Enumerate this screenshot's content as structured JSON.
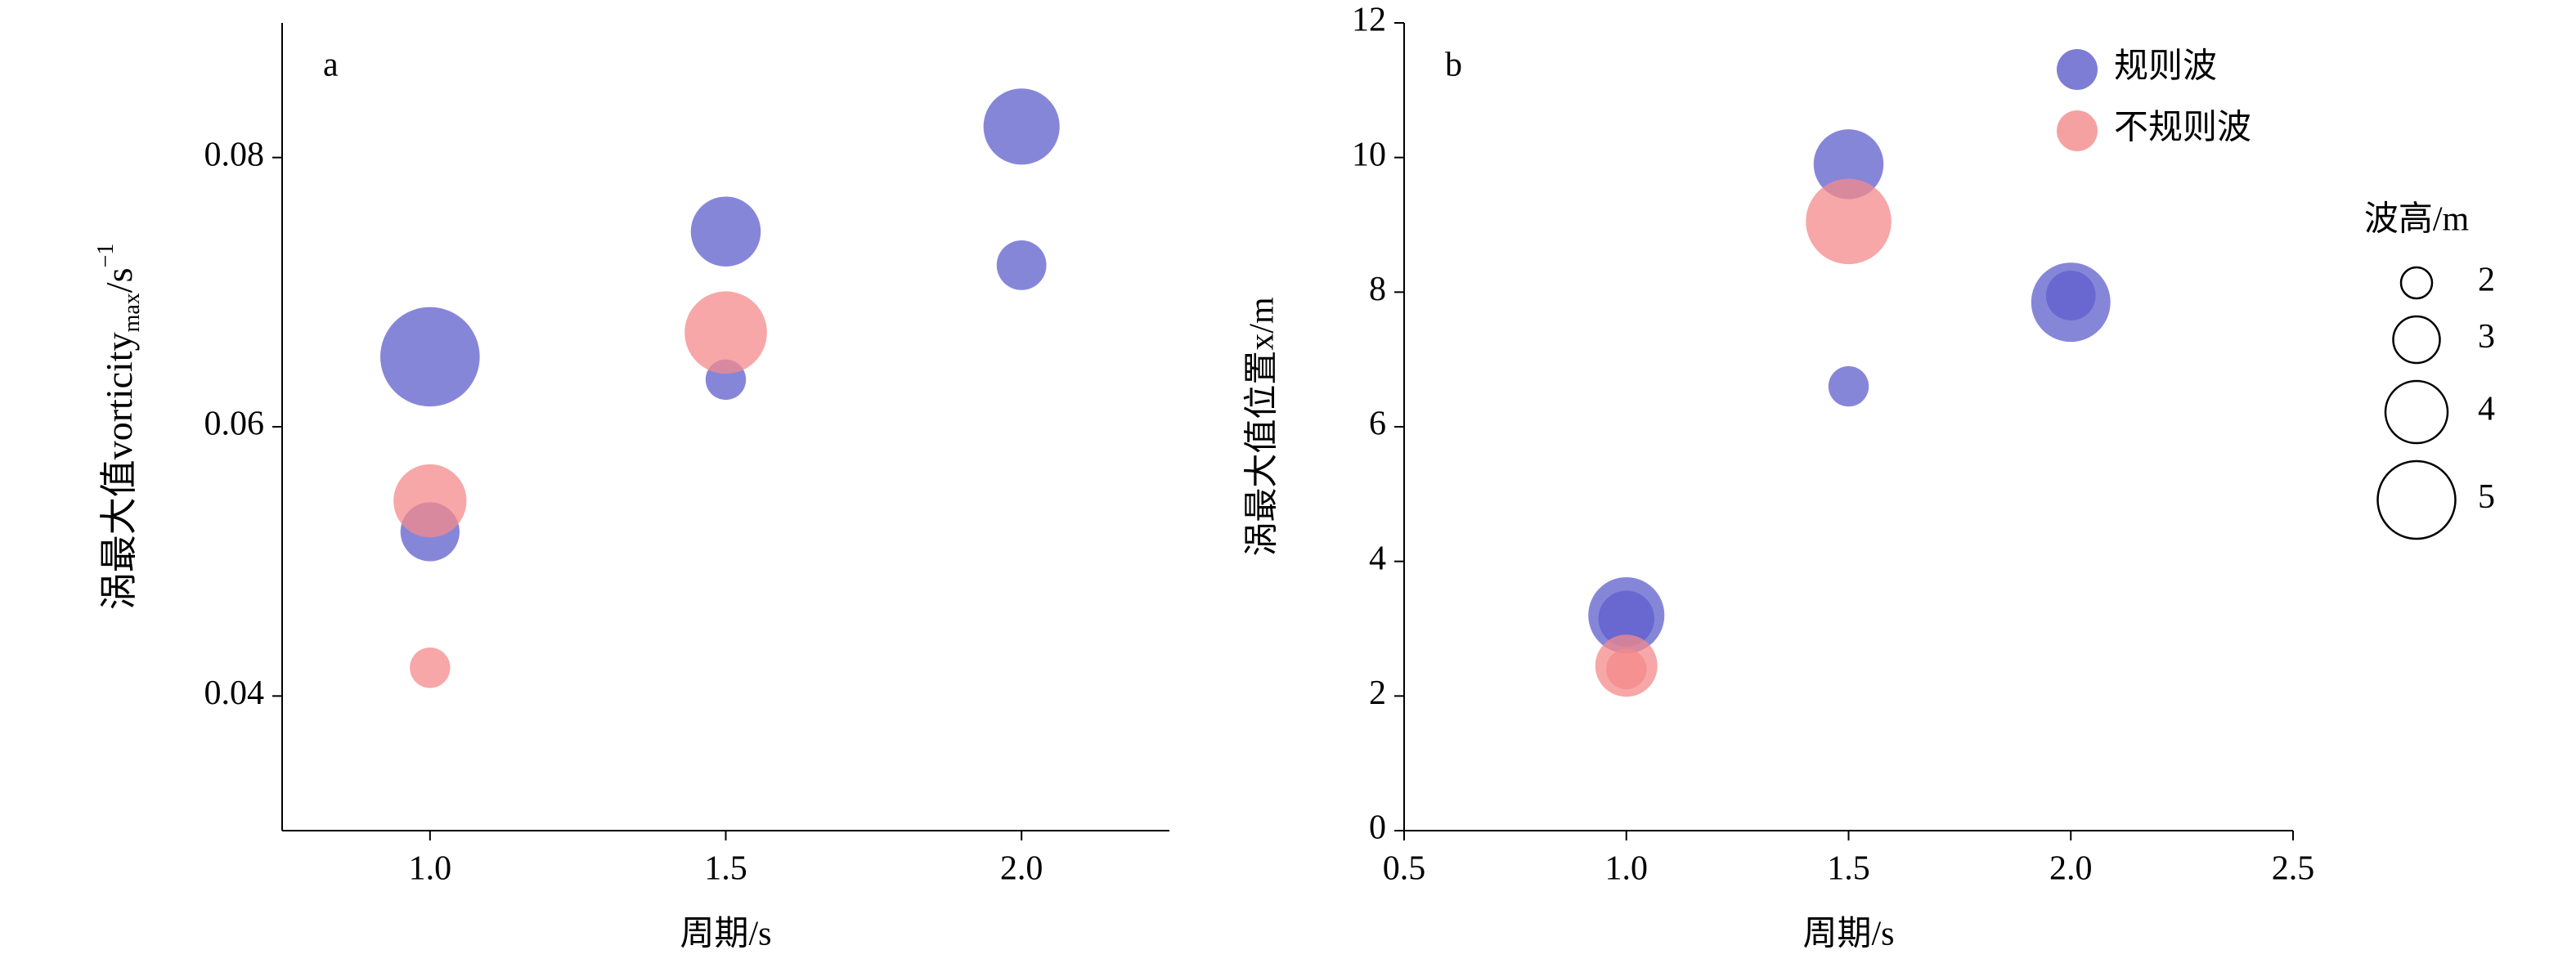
{
  "chart_data": [
    {
      "type": "scatter",
      "panel_label": "a",
      "xlabel": "周期/s",
      "ylabel": [
        "涡最大值vorticity",
        "max",
        "/s",
        "−1"
      ],
      "xlim": [
        0.75,
        2.25
      ],
      "xticks": [
        {
          "value": 1,
          "label": "1.0"
        },
        1.5,
        {
          "value": 2,
          "label": "2.0"
        }
      ],
      "ylim": [
        0.03,
        0.09
      ],
      "yticks": [
        0.04,
        0.06,
        0.08
      ],
      "series": [
        {
          "color": "#5d5dcc",
          "x": [
            1,
            1,
            1.5,
            1.5,
            2,
            2
          ],
          "values": [
            0.0652,
            0.0522,
            0.0745,
            0.0635,
            0.0823,
            0.072
          ],
          "sizes": [
            6.4,
            3.8,
            4.5,
            2.6,
            4.9,
            3.2
          ]
        },
        {
          "color": "#f48a8a",
          "x": [
            1,
            1,
            1.5
          ],
          "values": [
            0.0545,
            0.0421,
            0.067
          ],
          "sizes": [
            4.7,
            2.6,
            5.3
          ]
        }
      ]
    },
    {
      "type": "scatter",
      "panel_label": "b",
      "xlabel": "周期/s",
      "ylabel": "涡最大值位置x/m",
      "xlim": [
        0.5,
        2.5
      ],
      "xticks": [
        0.5,
        {
          "value": 1,
          "label": "1.0"
        },
        1.5,
        {
          "value": 2,
          "label": "2.0"
        },
        2.5
      ],
      "ylim": [
        0,
        12
      ],
      "yticks": [
        0,
        2,
        4,
        6,
        8,
        10,
        12
      ],
      "series": [
        {
          "name": "规则波",
          "color": "#5d5dcc",
          "x": [
            1,
            1,
            1.5,
            1.5,
            2,
            2
          ],
          "values": [
            3.2,
            3.15,
            9.9,
            6.6,
            7.85,
            7.95
          ],
          "sizes": [
            4.9,
            3.6,
            4.5,
            2.6,
            5.1,
            3.2
          ]
        },
        {
          "name": "不规则波",
          "color": "#f48a8a",
          "x": [
            1,
            1,
            1.5
          ],
          "values": [
            2.45,
            2.4,
            9.05
          ],
          "sizes": [
            4.0,
            2.6,
            5.5
          ]
        }
      ],
      "size_legend": {
        "title": "波高/m",
        "values": [
          2,
          3,
          4,
          5
        ]
      }
    }
  ]
}
